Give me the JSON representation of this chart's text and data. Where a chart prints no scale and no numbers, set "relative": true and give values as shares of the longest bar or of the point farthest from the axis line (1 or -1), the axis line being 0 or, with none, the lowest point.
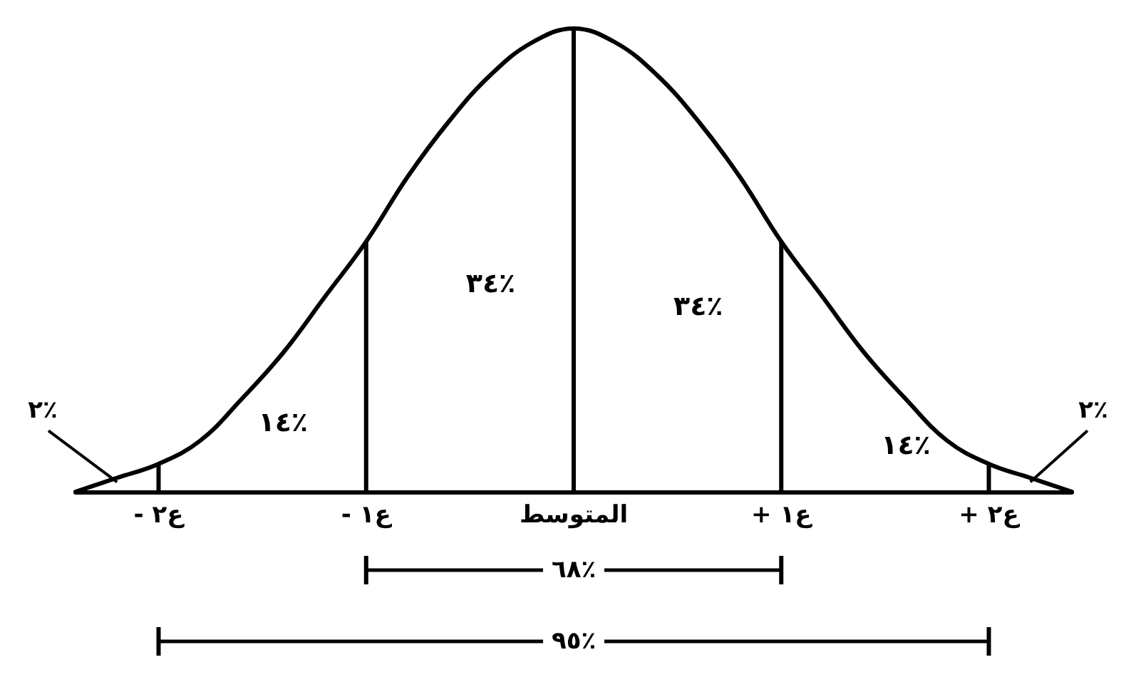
{
  "chart_data": {
    "type": "line",
    "relative": true,
    "categories": [
      null,
      null,
      "- ع٢",
      null,
      null,
      null,
      null,
      "- ع١",
      null,
      null,
      null,
      null,
      "المتوسط",
      null,
      null,
      null,
      null,
      "+ ع١",
      null,
      null,
      null,
      null,
      "+ ع٢",
      null,
      null
    ],
    "series": [
      {
        "color": "#000000",
        "values": [
          0,
          0.03,
          0.06,
          0.11,
          0.2,
          0.3,
          0.42,
          0.54,
          0.68,
          0.8,
          0.9,
          0.97,
          1,
          0.97,
          0.9,
          0.8,
          0.68,
          0.54,
          0.42,
          0.3,
          0.2,
          0.11,
          0.06,
          0.03,
          0
        ]
      },
      {
        "type": "bar",
        "color": "#000000",
        "values": [
          null,
          null,
          0.06,
          null,
          null,
          null,
          null,
          0.54,
          null,
          null,
          null,
          null,
          1,
          null,
          null,
          null,
          null,
          0.54,
          null,
          null,
          null,
          null,
          0.06,
          null,
          null
        ]
      }
    ],
    "annotations": [
      "٢٪",
      "١٤٪",
      "٣٤٪",
      "٣٤٪",
      "١٤٪",
      "٢٪",
      "٦٨٪",
      "٩٥٪"
    ],
    "grid": false,
    "marker": "none",
    "line_style": "solid"
  }
}
